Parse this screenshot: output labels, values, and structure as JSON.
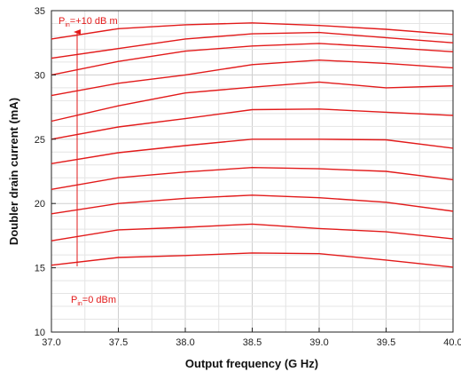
{
  "chart_data": {
    "type": "line",
    "xlabel": "Output frequency (G Hz)",
    "ylabel": "Doubler drain current (mA)",
    "xlim": [
      37.0,
      40.0
    ],
    "ylim": [
      10,
      35
    ],
    "x_ticks": [
      "37.0",
      "37.5",
      "38.0",
      "38.5",
      "39.0",
      "39.5",
      "40.0"
    ],
    "y_ticks": [
      "10",
      "15",
      "20",
      "25",
      "30",
      "35"
    ],
    "grid": true,
    "line_color": "#e21a1a",
    "x": [
      37.0,
      37.5,
      38.0,
      38.5,
      39.0,
      39.5,
      40.0
    ],
    "series": [
      {
        "values": [
          15.2,
          15.8,
          15.95,
          16.15,
          16.1,
          15.6,
          15.05
        ]
      },
      {
        "values": [
          17.1,
          17.95,
          18.15,
          18.4,
          18.05,
          17.8,
          17.25
        ]
      },
      {
        "values": [
          19.2,
          20.0,
          20.4,
          20.65,
          20.45,
          20.1,
          19.4
        ]
      },
      {
        "values": [
          21.1,
          22.0,
          22.45,
          22.8,
          22.7,
          22.5,
          21.85
        ]
      },
      {
        "values": [
          23.1,
          23.95,
          24.5,
          25.0,
          25.0,
          24.95,
          24.3
        ]
      },
      {
        "values": [
          25.0,
          25.95,
          26.6,
          27.3,
          27.35,
          27.1,
          26.85
        ]
      },
      {
        "values": [
          26.4,
          27.6,
          28.6,
          29.05,
          29.45,
          29.0,
          29.15
        ]
      },
      {
        "values": [
          28.4,
          29.35,
          30.0,
          30.8,
          31.15,
          30.9,
          30.55
        ]
      },
      {
        "values": [
          30.0,
          31.05,
          31.85,
          32.25,
          32.45,
          32.15,
          31.8
        ]
      },
      {
        "values": [
          31.3,
          32.05,
          32.8,
          33.2,
          33.3,
          32.9,
          32.5
        ]
      },
      {
        "values": [
          32.8,
          33.6,
          33.9,
          34.05,
          33.85,
          33.55,
          33.15
        ]
      }
    ],
    "annotations": {
      "top": {
        "text": "P",
        "sub": "in",
        "suffix": "=+10 dB m"
      },
      "bottom": {
        "text": "P",
        "sub": "in",
        "suffix": "=0 dBm"
      }
    }
  }
}
